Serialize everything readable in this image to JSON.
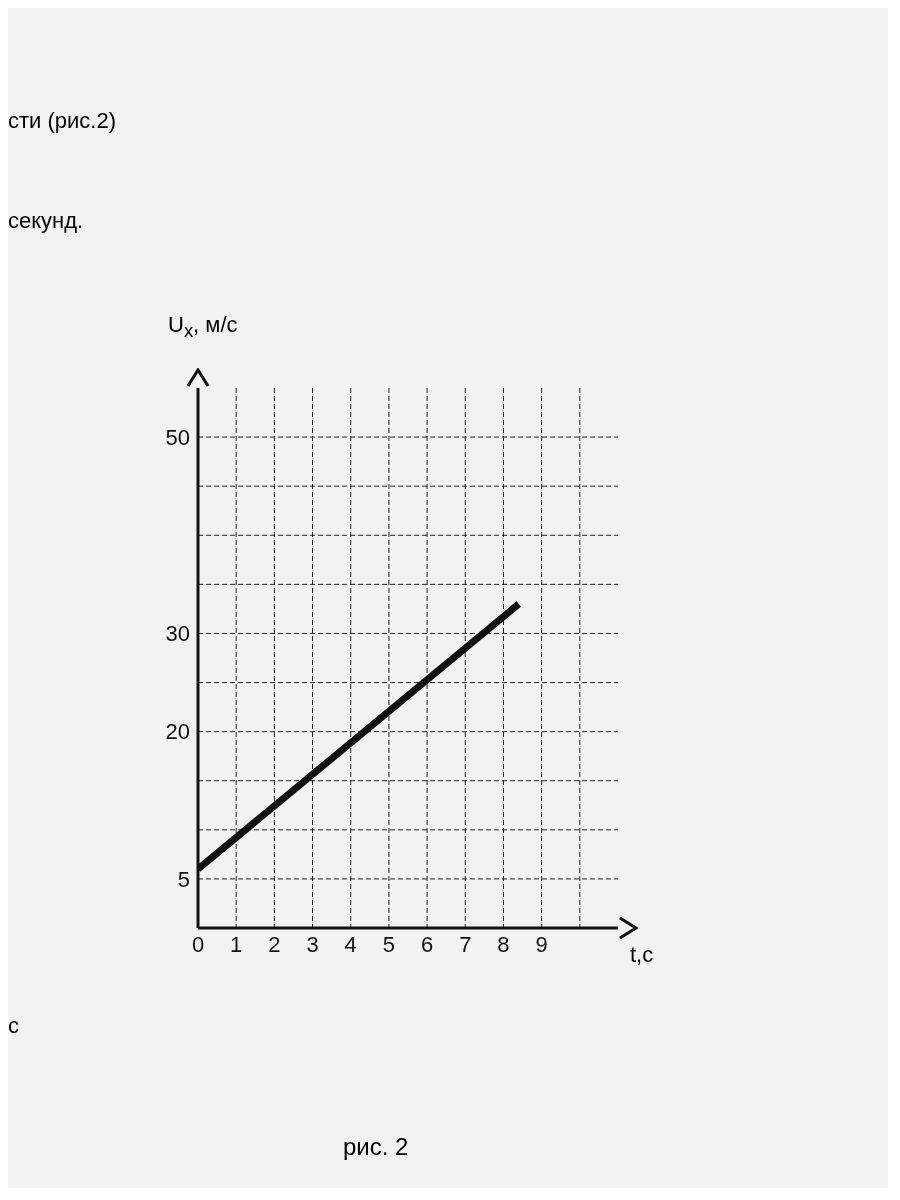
{
  "chart_data": {
    "type": "line",
    "xlabel": "t,с",
    "ylabel": "U$_{x}$, м/с",
    "annotations": [
      "сти (рис.2)",
      "секунд.",
      "с",
      "рис. 2"
    ],
    "x": [
      0,
      8.4
    ],
    "series": [
      {
        "color": "#111111",
        "values": [
          6,
          33
        ]
      }
    ],
    "xlim": [
      0,
      11
    ],
    "xticks": [
      0,
      1,
      2,
      3,
      4,
      5,
      6,
      7,
      8,
      9,
      {
        "value": 10,
        "label": null
      }
    ],
    "ylim": [
      0,
      55
    ],
    "yticks": [
      5,
      {
        "value": 10,
        "label": null
      },
      {
        "value": 15,
        "label": null
      },
      20,
      {
        "value": 25,
        "label": null
      },
      30,
      {
        "value": 35,
        "label": null
      },
      {
        "value": 40,
        "label": null
      },
      {
        "value": 45,
        "label": null
      },
      50
    ],
    "grid": true,
    "marker": "none",
    "line_style": "solid",
    "legend": false
  }
}
